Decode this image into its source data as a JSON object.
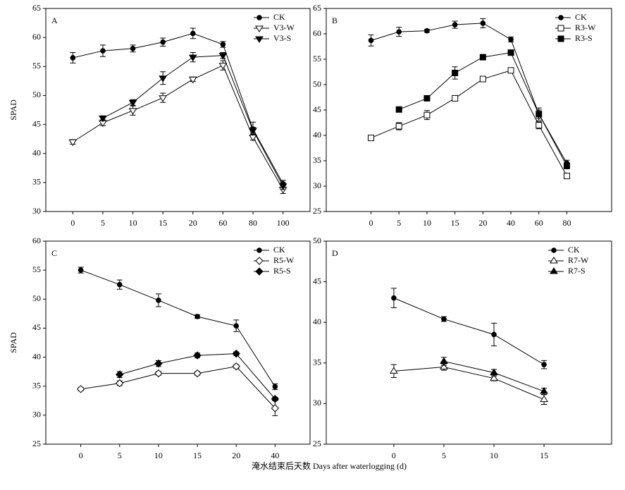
{
  "xlabel": "淹水结束后天数 Days after waterlogging (d)",
  "chart_data": [
    {
      "type": "line",
      "label": "A",
      "ylabel": "SPAD",
      "legend": "upper right",
      "categories": [
        0,
        5,
        10,
        15,
        20,
        60,
        80,
        100
      ],
      "ylim": [
        30,
        65
      ],
      "yticks": [
        30,
        35,
        40,
        45,
        50,
        55,
        60,
        65
      ],
      "series": [
        {
          "name": "CK",
          "color": "#000000",
          "marker": "circle",
          "filled": true,
          "values": [
            56.5,
            57.7,
            58.1,
            59.2,
            60.7,
            58.8,
            44.2,
            34.8
          ],
          "errors": [
            0.9,
            1.0,
            0.6,
            0.7,
            0.9,
            0.5,
            1.2,
            0.6
          ]
        },
        {
          "name": "V3-W",
          "color": "#000000",
          "marker": "triangle-down",
          "filled": false,
          "values": [
            42.0,
            45.3,
            47.4,
            49.6,
            52.8,
            55.2,
            42.8,
            33.8
          ],
          "errors": [
            0.4,
            0.5,
            0.8,
            0.8,
            0.4,
            0.8,
            0.5,
            0.7
          ]
        },
        {
          "name": "V3-S",
          "color": "#000000",
          "marker": "triangle-down",
          "filled": true,
          "values": [
            null,
            46.1,
            48.8,
            53.0,
            56.6,
            56.9,
            44.0,
            34.4
          ],
          "errors": [
            null,
            0.4,
            0.5,
            1.1,
            0.8,
            0.5,
            0.5,
            0.6
          ]
        }
      ]
    },
    {
      "type": "line",
      "label": "B",
      "legend": "upper right",
      "categories": [
        0,
        5,
        10,
        15,
        20,
        40,
        60,
        80
      ],
      "ylim": [
        25,
        65
      ],
      "yticks": [
        25,
        30,
        35,
        40,
        45,
        50,
        55,
        60,
        65
      ],
      "series": [
        {
          "name": "CK",
          "color": "#000000",
          "marker": "circle",
          "filled": true,
          "values": [
            58.7,
            60.4,
            60.6,
            61.8,
            62.1,
            58.9,
            44.2,
            34.5
          ],
          "errors": [
            1.1,
            0.9,
            0.3,
            0.7,
            0.9,
            0.5,
            1.2,
            0.6
          ]
        },
        {
          "name": "R3-W",
          "color": "#000000",
          "marker": "square",
          "filled": false,
          "values": [
            39.5,
            41.8,
            44.0,
            47.3,
            51.1,
            52.8,
            42.0,
            32.0
          ],
          "errors": [
            0.3,
            0.7,
            0.9,
            0.3,
            0.3,
            0.5,
            0.7,
            0.5
          ]
        },
        {
          "name": "R3-S",
          "color": "#000000",
          "marker": "square",
          "filled": true,
          "values": [
            null,
            45.1,
            47.3,
            52.3,
            55.4,
            56.3,
            44.2,
            34.0
          ],
          "errors": [
            null,
            0.3,
            0.4,
            1.2,
            0.3,
            0.3,
            0.8,
            0.6
          ]
        }
      ]
    },
    {
      "type": "line",
      "label": "C",
      "ylabel": "SPAD",
      "legend": "upper right",
      "categories": [
        0,
        5,
        10,
        15,
        20,
        40
      ],
      "ylim": [
        25,
        60
      ],
      "yticks": [
        25,
        30,
        35,
        40,
        45,
        50,
        55,
        60
      ],
      "series": [
        {
          "name": "CK",
          "color": "#000000",
          "marker": "circle",
          "filled": true,
          "values": [
            55.0,
            52.5,
            49.8,
            47.0,
            45.4,
            34.9
          ],
          "errors": [
            0.5,
            0.8,
            1.1,
            0.3,
            1.0,
            0.5
          ]
        },
        {
          "name": "R5-W",
          "color": "#000000",
          "marker": "diamond",
          "filled": false,
          "values": [
            34.5,
            35.5,
            37.2,
            37.2,
            38.4,
            31.2
          ],
          "errors": [
            0.3,
            0.4,
            0.3,
            0.3,
            0.3,
            1.3
          ]
        },
        {
          "name": "R5-S",
          "color": "#000000",
          "marker": "diamond",
          "filled": true,
          "values": [
            null,
            37.0,
            38.9,
            40.3,
            40.6,
            32.8
          ],
          "errors": [
            null,
            0.5,
            0.5,
            0.4,
            0.3,
            0.3
          ]
        }
      ]
    },
    {
      "type": "line",
      "label": "D",
      "legend": "upper right",
      "categories": [
        0,
        5,
        10,
        15
      ],
      "ylim": [
        25,
        50
      ],
      "yticks": [
        25,
        30,
        35,
        40,
        45,
        50
      ],
      "series": [
        {
          "name": "CK",
          "color": "#000000",
          "marker": "circle",
          "filled": true,
          "values": [
            43.0,
            40.4,
            38.5,
            34.8
          ],
          "errors": [
            1.2,
            0.3,
            1.4,
            0.5
          ]
        },
        {
          "name": "R7-W",
          "color": "#000000",
          "marker": "triangle-up",
          "filled": false,
          "values": [
            34.0,
            34.5,
            33.1,
            30.5
          ],
          "errors": [
            0.8,
            0.4,
            0.3,
            0.6
          ]
        },
        {
          "name": "R7-S",
          "color": "#000000",
          "marker": "triangle-up",
          "filled": true,
          "values": [
            null,
            35.2,
            33.8,
            31.5
          ],
          "errors": [
            null,
            0.5,
            0.4,
            0.4
          ]
        }
      ]
    }
  ]
}
